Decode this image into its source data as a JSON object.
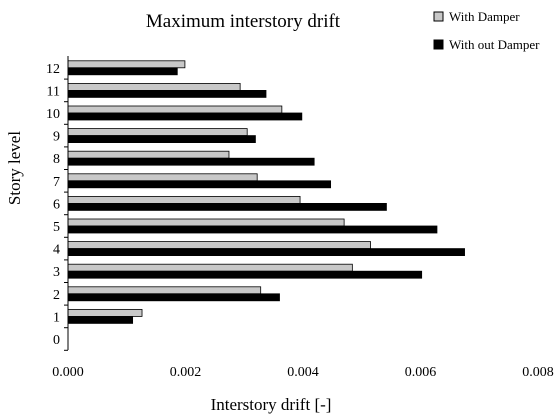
{
  "chart_data": {
    "type": "bar",
    "orientation": "horizontal",
    "title": "Maximum interstory drift",
    "xlabel": "Interstory drift [-]",
    "ylabel": "Story level",
    "xlim": [
      0,
      0.008
    ],
    "x_ticks": [
      "0.000",
      "0.002",
      "0.004",
      "0.006",
      "0.008"
    ],
    "categories": [
      "0",
      "1",
      "2",
      "3",
      "4",
      "5",
      "6",
      "7",
      "8",
      "9",
      "10",
      "11",
      "12"
    ],
    "series": [
      {
        "name": "With Damper",
        "color": "#c8c8c8",
        "values": [
          null,
          0.00126,
          0.00328,
          0.00484,
          0.00515,
          0.0047,
          0.00395,
          0.00322,
          0.00274,
          0.00305,
          0.00364,
          0.00293,
          0.00199
        ]
      },
      {
        "name": "With out Damper",
        "color": "#000000",
        "values": [
          null,
          0.0011,
          0.0036,
          0.00602,
          0.00675,
          0.00628,
          0.00542,
          0.00447,
          0.00419,
          0.00319,
          0.00398,
          0.00337,
          0.00186
        ]
      }
    ],
    "legend_position": "top-right",
    "grid": false
  }
}
